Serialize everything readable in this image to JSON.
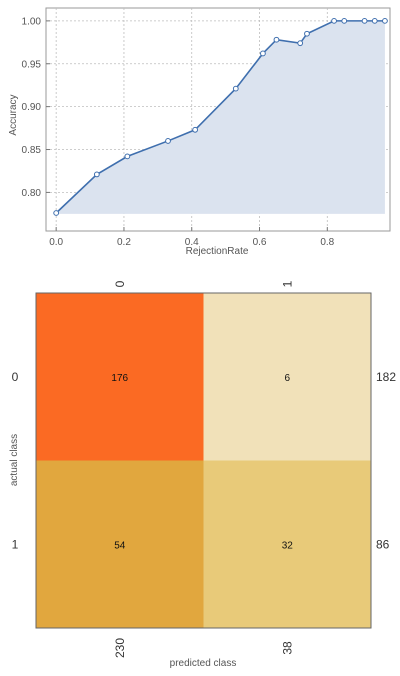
{
  "chart_data": [
    {
      "type": "area",
      "xlabel": "RejectionRate",
      "ylabel": "Accuracy",
      "xlim": [
        -0.03,
        0.985
      ],
      "ylim": [
        0.755,
        1.015
      ],
      "xticks": [
        0.0,
        0.2,
        0.4,
        0.6,
        0.8
      ],
      "xtick_labels": [
        "0.0",
        "0.2",
        "0.4",
        "0.6",
        "0.8"
      ],
      "yticks": [
        0.8,
        0.85,
        0.9,
        0.95,
        1.0
      ],
      "ytick_labels": [
        "0.80",
        "0.85",
        "0.90",
        "0.95",
        "1.00"
      ],
      "grid": true,
      "line_color": "#3f6fae",
      "fill_color": "#dbe3ef",
      "fill_to": 0.775,
      "series": [
        {
          "x": [
            0.0,
            0.12,
            0.21,
            0.33,
            0.41,
            0.53,
            0.61,
            0.65,
            0.72,
            0.74,
            0.82,
            0.85,
            0.91,
            0.94,
            0.97
          ],
          "y": [
            0.776,
            0.821,
            0.842,
            0.86,
            0.873,
            0.921,
            0.962,
            0.978,
            0.974,
            0.985,
            1.0,
            1.0,
            1.0,
            1.0,
            1.0
          ]
        }
      ]
    },
    {
      "type": "heatmap",
      "xlabel": "predicted class",
      "ylabel": "actual class",
      "classes": [
        "0",
        "1"
      ],
      "matrix": [
        [
          176,
          6
        ],
        [
          54,
          32
        ]
      ],
      "row_totals": [
        182,
        86
      ],
      "col_totals": [
        230,
        38
      ],
      "colors": [
        [
          "#fb6a23",
          "#f1e1b9"
        ],
        [
          "#e1a73e",
          "#e8ca79"
        ]
      ]
    }
  ]
}
